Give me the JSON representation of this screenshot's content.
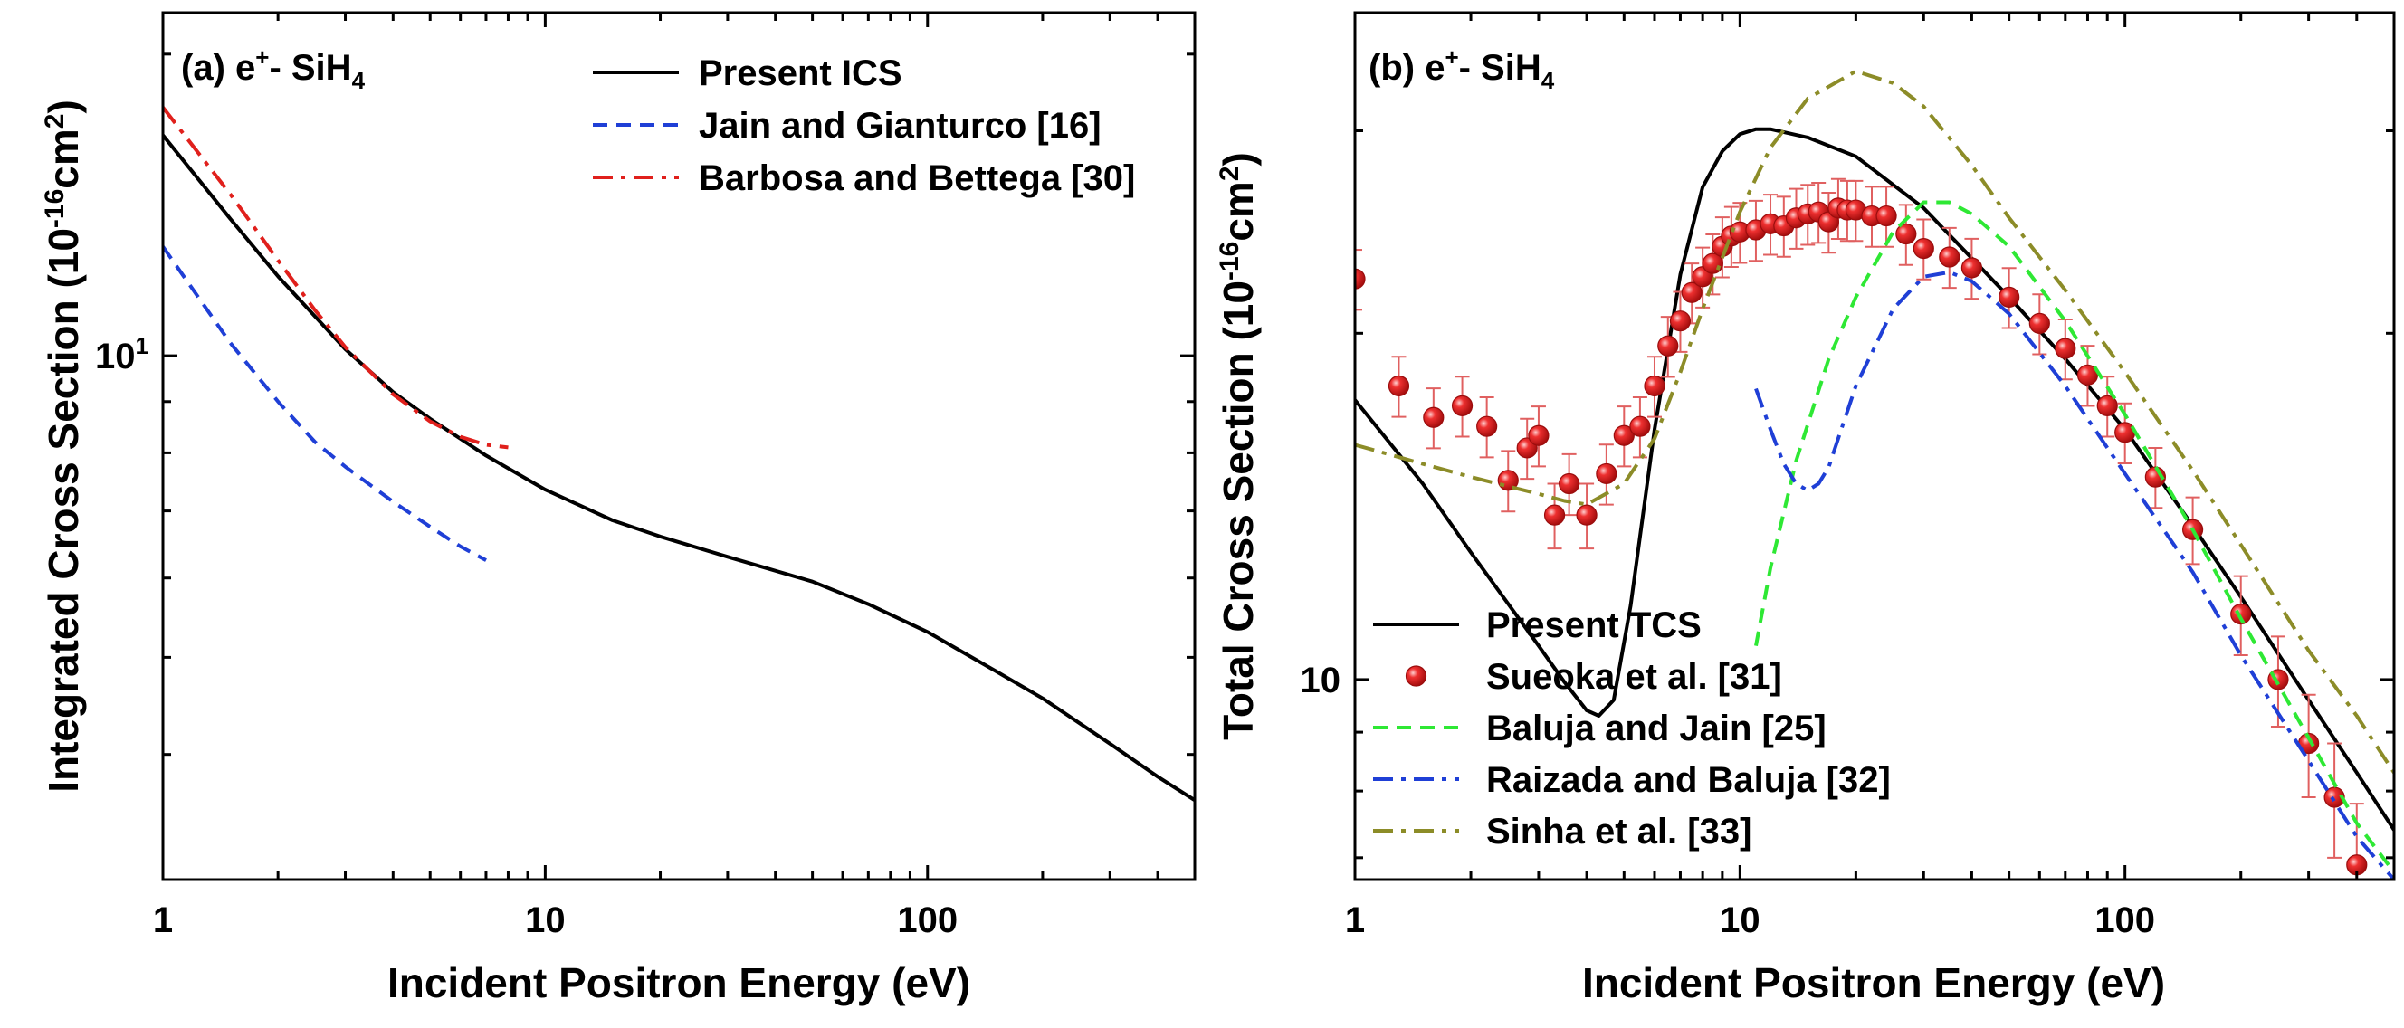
{
  "figure": {
    "panels": [
      "panel_a",
      "panel_b"
    ]
  },
  "chart_data": [
    {
      "id": "panel_a",
      "type": "line",
      "panel_label": {
        "prefix": "(a) e",
        "sup": "+",
        "mid": "- SiH",
        "sub": "4"
      },
      "xlabel": "Incident Positron Energy (eV)",
      "ylabel": {
        "main": "Integrated Cross Section (10",
        "sup1": "-16",
        "mid": "cm",
        "sup2": "2",
        "end": ")"
      },
      "xscale": "log",
      "yscale": "log",
      "xlim": [
        1,
        500
      ],
      "ylim": [
        3.0,
        22.0
      ],
      "xticks": [
        1,
        10,
        100
      ],
      "xtick_labels": [
        "1",
        "10",
        "100"
      ],
      "yticks": [
        10
      ],
      "ytick_labels": [
        "10"
      ],
      "ytick_label_style": "power-of-ten",
      "legend_position": "top-right",
      "series": [
        {
          "name": "Present ICS",
          "color": "#000000",
          "style": "solid",
          "width": 4,
          "x": [
            1,
            1.5,
            2,
            3,
            4,
            5,
            7,
            10,
            15,
            20,
            30,
            50,
            70,
            100,
            150,
            200,
            300,
            400,
            500
          ],
          "y": [
            16.6,
            13.7,
            12.0,
            10.15,
            9.2,
            8.65,
            7.95,
            7.35,
            6.85,
            6.6,
            6.3,
            5.95,
            5.65,
            5.3,
            4.85,
            4.55,
            4.1,
            3.8,
            3.6
          ]
        },
        {
          "name": "Jain and Gianturco [16]",
          "color": "#1f3fd6",
          "style": "dashed",
          "width": 4,
          "x": [
            1,
            1.5,
            2,
            2.5,
            3,
            4,
            5,
            6,
            7
          ],
          "y": [
            12.85,
            10.3,
            9.0,
            8.2,
            7.75,
            7.15,
            6.75,
            6.45,
            6.25
          ]
        },
        {
          "name": "Barbosa and Bettega [30]",
          "color": "#e0201c",
          "style": "dashdot",
          "width": 4,
          "x": [
            1,
            1.5,
            2,
            2.5,
            3,
            4,
            5,
            6,
            7,
            8
          ],
          "y": [
            17.7,
            14.5,
            12.45,
            11.1,
            10.2,
            9.15,
            8.6,
            8.3,
            8.15,
            8.1
          ]
        }
      ]
    },
    {
      "id": "panel_b",
      "type": "line",
      "panel_label": {
        "prefix": "(b) e",
        "sup": "+",
        "mid": "- SiH",
        "sub": "4"
      },
      "xlabel": "Incident Positron Energy (eV)",
      "ylabel": {
        "main": "Total Cross Section (10",
        "sup1": "-16",
        "mid": "cm",
        "sup2": "2",
        "end": ")"
      },
      "xscale": "log",
      "yscale": "log",
      "xlim": [
        1,
        500
      ],
      "ylim": [
        6.7,
        38.0
      ],
      "xticks": [
        1,
        10,
        100
      ],
      "xtick_labels": [
        "1",
        "10",
        "100"
      ],
      "yticks": [
        10
      ],
      "ytick_labels": [
        "10"
      ],
      "legend_position": "bottom-left",
      "series": [
        {
          "name": "Present TCS",
          "color": "#000000",
          "style": "solid",
          "width": 4,
          "x": [
            1,
            1.5,
            2,
            3,
            3.5,
            4,
            4.3,
            4.7,
            5.2,
            6,
            7,
            8,
            9,
            10,
            11,
            12,
            15,
            20,
            30,
            50,
            70,
            100,
            150,
            200,
            300,
            400,
            500
          ],
          "y": [
            17.5,
            14.8,
            12.9,
            10.7,
            9.95,
            9.4,
            9.3,
            9.6,
            11.6,
            16.5,
            22.5,
            26.8,
            28.8,
            29.8,
            30.1,
            30.1,
            29.6,
            28.5,
            25.7,
            21.5,
            19.0,
            16.5,
            13.6,
            11.8,
            9.6,
            8.3,
            7.4
          ]
        },
        {
          "name": "Sueoka et al. [31]",
          "color": "#e0201c",
          "style": "markers",
          "marker": "sphere",
          "x": [
            1,
            1.3,
            1.6,
            1.9,
            2.2,
            2.5,
            2.8,
            3.0,
            3.3,
            3.6,
            4.0,
            4.5,
            5.0,
            5.5,
            6.0,
            6.5,
            7.0,
            7.5,
            8.0,
            8.5,
            9.0,
            9.5,
            10,
            11,
            12,
            13,
            14,
            15,
            16,
            17,
            18,
            19,
            20,
            22,
            24,
            27,
            30,
            35,
            40,
            50,
            60,
            70,
            80,
            90,
            100,
            120,
            150,
            200,
            250,
            300,
            350,
            400
          ],
          "y": [
            22.3,
            18.0,
            16.9,
            17.3,
            16.6,
            14.9,
            15.9,
            16.3,
            13.9,
            14.8,
            13.9,
            15.1,
            16.3,
            16.6,
            18.0,
            19.5,
            20.5,
            21.7,
            22.4,
            23.0,
            23.8,
            24.3,
            24.5,
            24.6,
            24.9,
            24.8,
            25.2,
            25.4,
            25.5,
            25.0,
            25.7,
            25.6,
            25.6,
            25.3,
            25.3,
            24.4,
            23.7,
            23.3,
            22.8,
            21.5,
            20.4,
            19.4,
            18.4,
            17.3,
            16.4,
            15.0,
            13.5,
            11.4,
            10.0,
            8.8,
            7.9,
            6.9
          ]
        },
        {
          "name": "Baluja and Jain [25]",
          "color": "#2ee834",
          "style": "dashed",
          "width": 4,
          "x": [
            11,
            12,
            14,
            17,
            20,
            25,
            30,
            35,
            40,
            50,
            70,
            100,
            150,
            200,
            300,
            400,
            500
          ],
          "y": [
            10.7,
            12.5,
            15.5,
            19.0,
            21.5,
            24.5,
            26.0,
            26.0,
            25.4,
            23.8,
            20.5,
            17.0,
            13.5,
            11.3,
            8.9,
            7.5,
            6.8
          ]
        },
        {
          "name": "Raizada and Baluja [32]",
          "color": "#1f3fd6",
          "style": "dashdot",
          "width": 4,
          "x": [
            11,
            12,
            13,
            14,
            15,
            16,
            17,
            18,
            20,
            25,
            30,
            35,
            40,
            50,
            70,
            100,
            150,
            200,
            300,
            400,
            500
          ],
          "y": [
            17.9,
            16.5,
            15.4,
            14.8,
            14.6,
            14.8,
            15.3,
            16.2,
            18.0,
            21.0,
            22.4,
            22.6,
            22.2,
            20.8,
            18.0,
            15.1,
            12.4,
            10.5,
            8.5,
            7.3,
            6.7
          ]
        },
        {
          "name": "Sinha et al. [33]",
          "color": "#8c8c28",
          "style": "dashdot",
          "width": 4,
          "x": [
            1,
            1.5,
            2,
            3,
            3.5,
            4,
            5,
            6,
            7,
            8,
            10,
            12,
            15,
            20,
            25,
            30,
            40,
            50,
            70,
            100,
            150,
            200,
            300,
            400,
            500
          ],
          "y": [
            16.0,
            15.4,
            15.0,
            14.5,
            14.3,
            14.2,
            14.8,
            16.2,
            18.5,
            21.0,
            25.5,
            29.0,
            32.0,
            33.8,
            33.0,
            31.5,
            28.0,
            25.2,
            21.8,
            18.5,
            15.2,
            13.1,
            10.6,
            9.3,
            8.3
          ]
        }
      ]
    }
  ]
}
